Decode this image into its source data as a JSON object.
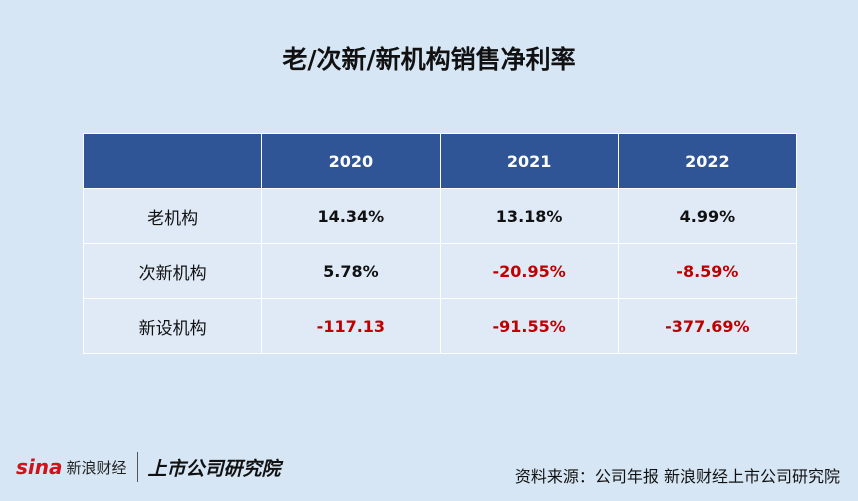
{
  "header": {
    "title": "老/次新/新机构销售净利率"
  },
  "table": {
    "columns": [
      "",
      "2020",
      "2021",
      "2022"
    ],
    "rows": [
      [
        "老机构",
        "14.34%",
        "13.18%",
        "4.99%"
      ],
      [
        "次新机构",
        "5.78%",
        "-20.95%",
        "-8.59%"
      ],
      [
        "新设机构",
        "-117.13",
        "-91.55%",
        "-377.69%"
      ]
    ]
  },
  "footer": {
    "logo_left": "sina",
    "logo_left_name": "新浪财经",
    "logo_right": "上市公司研究院",
    "source": "资料来源：公司年报 新浪财经上市公司研究院"
  }
}
